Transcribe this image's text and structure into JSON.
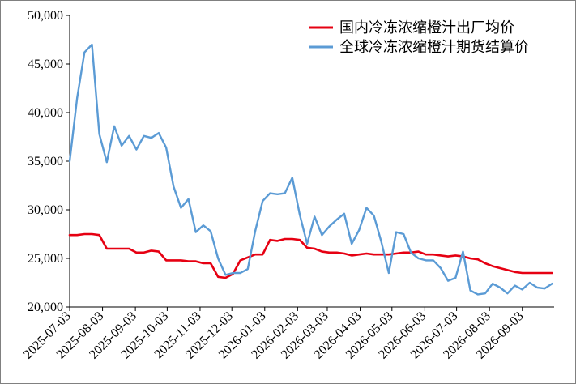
{
  "chart_data": {
    "type": "line",
    "title": "",
    "xlabel": "",
    "ylabel": "",
    "ylim": [
      20000,
      50000
    ],
    "yticks": [
      "20,000",
      "25,000",
      "30,000",
      "35,000",
      "40,000",
      "45,000",
      "50,000"
    ],
    "ytick_values": [
      20000,
      25000,
      30000,
      35000,
      40000,
      45000,
      50000
    ],
    "xticks": [
      "2025-07-03",
      "2025-08-03",
      "2025-09-03",
      "2025-10-03",
      "2025-11-03",
      "2025-12-03",
      "2026-01-03",
      "2026-02-03",
      "2026-03-03",
      "2026-04-03",
      "2026-05-03",
      "2026-06-03",
      "2026-07-03",
      "2026-08-03",
      "2026-09-03"
    ],
    "grid": false,
    "legend_position": "top-right",
    "x_start": "2025-07-03",
    "x_end": "2026-10-03",
    "series": [
      {
        "name": "国内冷冻浓缩橙汁出厂均价",
        "color": "#e60012",
        "x": [
          "2025-07-03",
          "2025-07-10",
          "2025-07-17",
          "2025-07-24",
          "2025-07-31",
          "2025-08-07",
          "2025-08-14",
          "2025-08-21",
          "2025-08-28",
          "2025-09-04",
          "2025-09-11",
          "2025-09-18",
          "2025-09-25",
          "2025-10-02",
          "2025-10-09",
          "2025-10-16",
          "2025-10-23",
          "2025-10-30",
          "2025-11-06",
          "2025-11-13",
          "2025-11-20",
          "2025-11-27",
          "2025-12-04",
          "2025-12-11",
          "2025-12-18",
          "2025-12-25",
          "2026-01-01",
          "2026-01-08",
          "2026-01-15",
          "2026-01-22",
          "2026-01-29",
          "2026-02-05",
          "2026-02-12",
          "2026-02-19",
          "2026-02-26",
          "2026-03-05",
          "2026-03-12",
          "2026-03-19",
          "2026-03-26",
          "2026-04-02",
          "2026-04-09",
          "2026-04-16",
          "2026-04-23",
          "2026-04-30",
          "2026-05-07",
          "2026-05-14",
          "2026-05-21",
          "2026-05-28",
          "2026-06-04",
          "2026-06-11",
          "2026-06-18",
          "2026-06-25",
          "2026-07-02",
          "2026-07-09",
          "2026-07-16",
          "2026-07-23",
          "2026-07-30",
          "2026-08-06",
          "2026-08-13",
          "2026-08-20",
          "2026-08-27",
          "2026-09-03",
          "2026-09-10",
          "2026-09-17",
          "2026-09-24",
          "2026-10-01"
        ],
        "values": [
          27400,
          27400,
          27500,
          27500,
          27400,
          26000,
          26000,
          26000,
          26000,
          25600,
          25600,
          25800,
          25700,
          24800,
          24800,
          24800,
          24700,
          24700,
          24500,
          24500,
          23100,
          23000,
          23400,
          24800,
          25100,
          25400,
          25400,
          26900,
          26800,
          27000,
          27000,
          26900,
          26100,
          26000,
          25700,
          25600,
          25600,
          25500,
          25300,
          25400,
          25500,
          25400,
          25400,
          25400,
          25500,
          25600,
          25600,
          25700,
          25400,
          25400,
          25300,
          25200,
          25300,
          25200,
          25000,
          24900,
          24500,
          24200,
          24000,
          23800,
          23600,
          23500,
          23500,
          23500,
          23500,
          23500
        ]
      },
      {
        "name": "全球冷冻浓缩橙汁期货结算价",
        "color": "#5b9bd5",
        "x": [
          "2025-07-03",
          "2025-07-10",
          "2025-07-17",
          "2025-07-24",
          "2025-07-31",
          "2025-08-07",
          "2025-08-14",
          "2025-08-21",
          "2025-08-28",
          "2025-09-04",
          "2025-09-11",
          "2025-09-18",
          "2025-09-25",
          "2025-10-02",
          "2025-10-09",
          "2025-10-16",
          "2025-10-23",
          "2025-10-30",
          "2025-11-06",
          "2025-11-13",
          "2025-11-20",
          "2025-11-27",
          "2025-12-04",
          "2025-12-11",
          "2025-12-18",
          "2025-12-25",
          "2026-01-01",
          "2026-01-08",
          "2026-01-15",
          "2026-01-22",
          "2026-01-29",
          "2026-02-05",
          "2026-02-12",
          "2026-02-19",
          "2026-02-26",
          "2026-03-05",
          "2026-03-12",
          "2026-03-19",
          "2026-03-26",
          "2026-04-02",
          "2026-04-09",
          "2026-04-16",
          "2026-04-23",
          "2026-04-30",
          "2026-05-07",
          "2026-05-14",
          "2026-05-21",
          "2026-05-28",
          "2026-06-04",
          "2026-06-11",
          "2026-06-18",
          "2026-06-25",
          "2026-07-02",
          "2026-07-09",
          "2026-07-16",
          "2026-07-23",
          "2026-07-30",
          "2026-08-06",
          "2026-08-13",
          "2026-08-20",
          "2026-08-27",
          "2026-09-03",
          "2026-09-10",
          "2026-09-17",
          "2026-09-24",
          "2026-10-01"
        ],
        "values": [
          35000,
          41500,
          46200,
          47000,
          37800,
          34900,
          38600,
          36600,
          37600,
          36200,
          37600,
          37400,
          37900,
          36400,
          32400,
          30200,
          31100,
          27700,
          28400,
          27800,
          25000,
          23300,
          23500,
          23500,
          23900,
          27800,
          30900,
          31700,
          31600,
          31700,
          33300,
          29500,
          26500,
          29300,
          27400,
          28300,
          29000,
          29600,
          26500,
          27900,
          30200,
          29400,
          26700,
          23500,
          27700,
          27500,
          25600,
          25000,
          24800,
          24800,
          24000,
          22700,
          23000,
          25700,
          21700,
          21300,
          21400,
          22400,
          22000,
          21400,
          22200,
          21800,
          22500,
          22000,
          21900,
          22400
        ]
      }
    ]
  }
}
